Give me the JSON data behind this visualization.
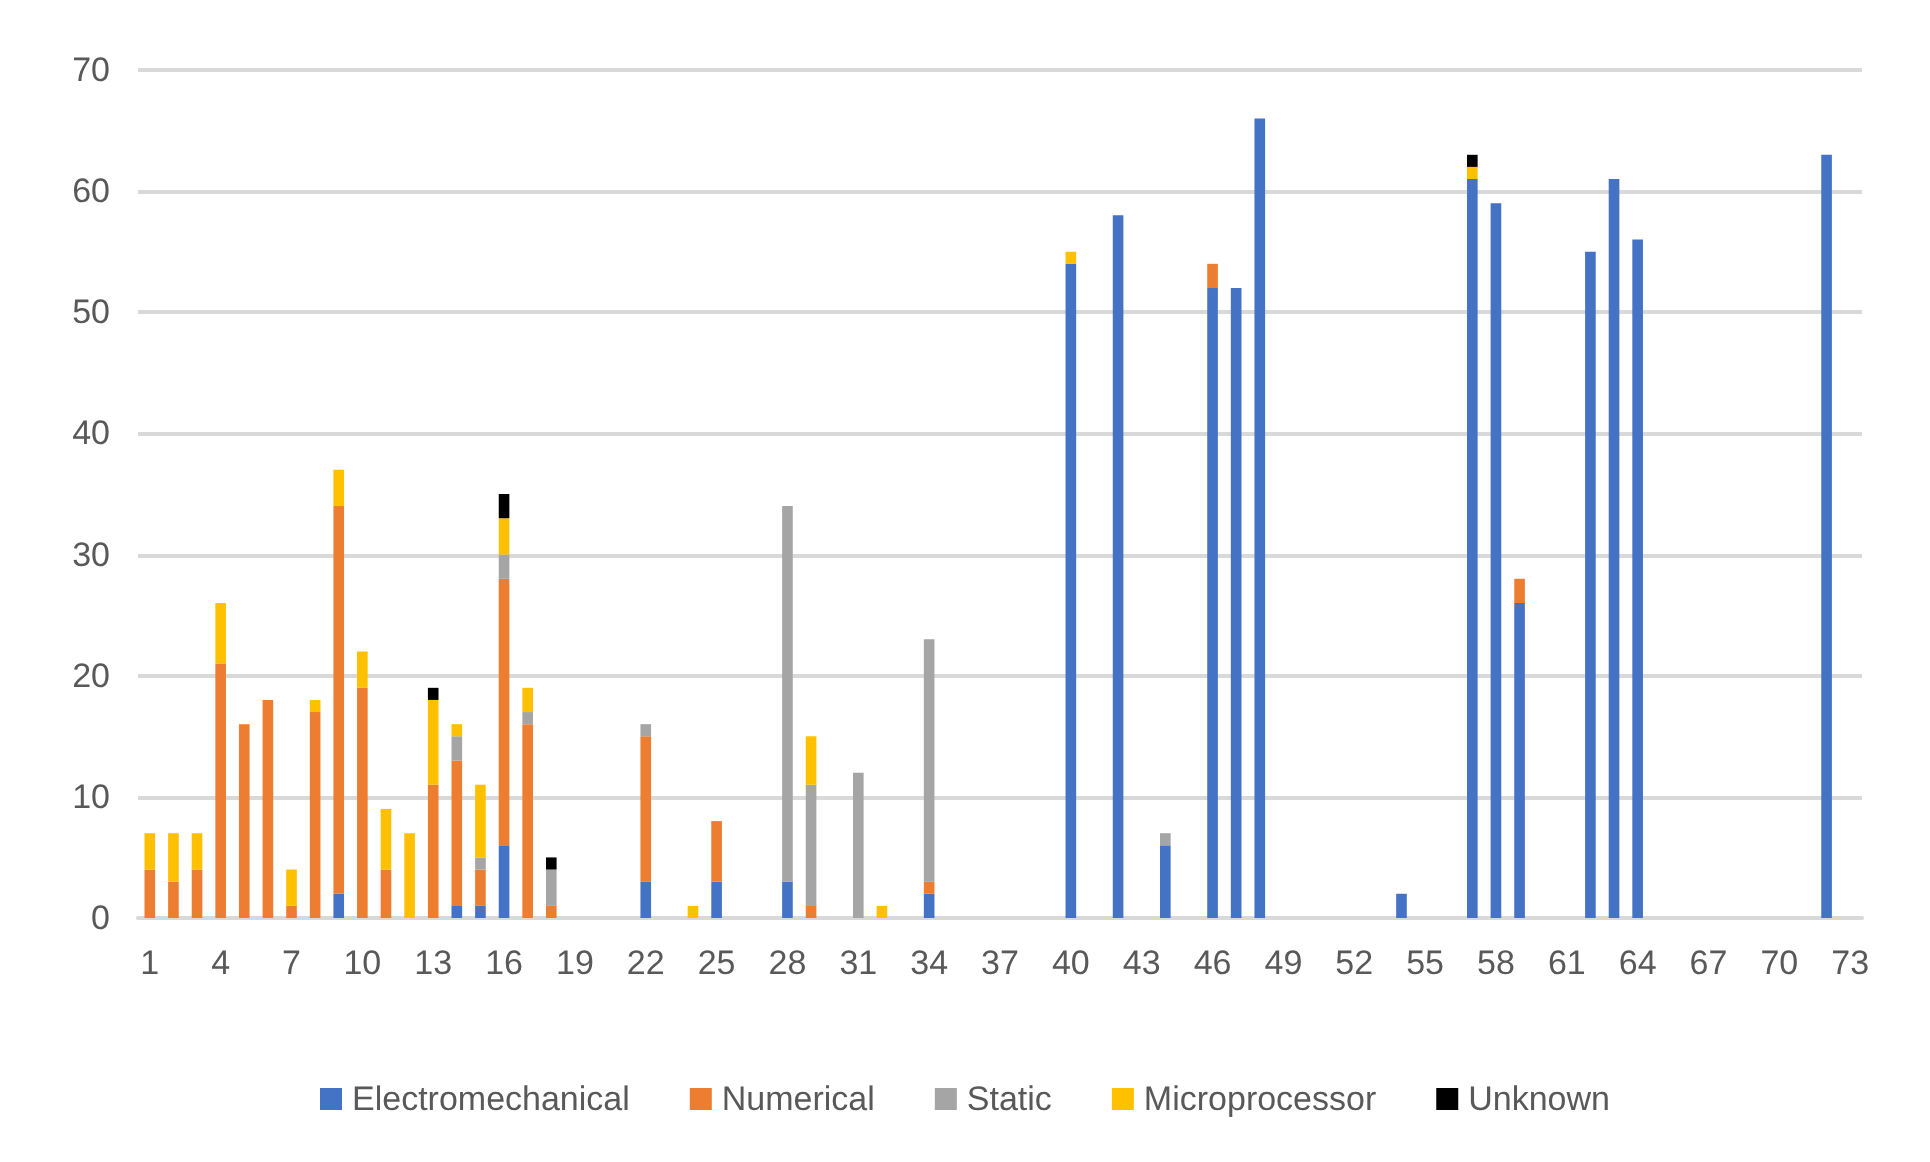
{
  "chart_data": {
    "type": "bar",
    "stacked": true,
    "grid": "y",
    "legend": "bottom",
    "ylim": [
      0,
      70
    ],
    "yticks": [
      0,
      10,
      20,
      30,
      40,
      50,
      60,
      70
    ],
    "categories": [
      "1",
      null,
      null,
      "4",
      null,
      null,
      "7",
      null,
      null,
      "10",
      null,
      null,
      "13",
      null,
      null,
      "16",
      null,
      null,
      "19",
      null,
      null,
      "22",
      null,
      null,
      "25",
      null,
      null,
      "28",
      null,
      null,
      "31",
      null,
      null,
      "34",
      null,
      null,
      "37",
      null,
      null,
      "40",
      null,
      null,
      "43",
      null,
      null,
      "46",
      null,
      null,
      "49",
      null,
      null,
      "52",
      null,
      null,
      "55",
      null,
      null,
      "58",
      null,
      null,
      "61",
      null,
      null,
      "64",
      null,
      null,
      "67",
      null,
      null,
      "70",
      null,
      null,
      "73"
    ],
    "series": [
      {
        "name": "Electromechanical",
        "color": "#4472c4",
        "values": [
          null,
          null,
          null,
          null,
          null,
          null,
          null,
          null,
          2,
          null,
          null,
          null,
          null,
          1,
          1,
          6,
          null,
          null,
          null,
          null,
          null,
          3,
          null,
          null,
          3,
          null,
          null,
          3,
          null,
          null,
          null,
          null,
          null,
          2,
          null,
          null,
          null,
          null,
          null,
          54,
          null,
          58,
          null,
          6,
          null,
          52,
          52,
          66,
          null,
          null,
          null,
          null,
          null,
          2,
          null,
          null,
          61,
          59,
          26,
          null,
          null,
          55,
          61,
          56,
          null,
          null,
          null,
          null,
          null,
          null,
          null,
          63,
          null
        ]
      },
      {
        "name": "Numerical",
        "color": "#ed7d31",
        "values": [
          4,
          3,
          4,
          21,
          16,
          18,
          1,
          17,
          32,
          19,
          4,
          null,
          11,
          12,
          3,
          22,
          16,
          1,
          null,
          null,
          null,
          12,
          null,
          null,
          5,
          null,
          null,
          null,
          1,
          null,
          null,
          null,
          null,
          1,
          null,
          null,
          null,
          null,
          null,
          null,
          null,
          null,
          null,
          null,
          null,
          2,
          null,
          null,
          null,
          null,
          null,
          null,
          null,
          null,
          null,
          null,
          null,
          null,
          2,
          null,
          null,
          null,
          null,
          null,
          null,
          null,
          null,
          null,
          null,
          null,
          null,
          null,
          null
        ]
      },
      {
        "name": "Static",
        "color": "#a5a5a5",
        "values": [
          null,
          null,
          null,
          null,
          null,
          null,
          null,
          null,
          null,
          null,
          null,
          null,
          null,
          2,
          1,
          2,
          1,
          3,
          null,
          null,
          null,
          1,
          null,
          null,
          null,
          null,
          null,
          31,
          10,
          null,
          12,
          null,
          null,
          20,
          null,
          null,
          null,
          null,
          null,
          null,
          null,
          null,
          null,
          1,
          null,
          null,
          null,
          null,
          null,
          null,
          null,
          null,
          null,
          null,
          null,
          null,
          null,
          null,
          null,
          null,
          null,
          null,
          null,
          null,
          null,
          null,
          null,
          null,
          null,
          null,
          null,
          null,
          null
        ]
      },
      {
        "name": "Microprocessor",
        "color": "#ffc000",
        "values": [
          3,
          4,
          3,
          5,
          null,
          null,
          3,
          1,
          3,
          3,
          5,
          7,
          7,
          1,
          6,
          3,
          2,
          null,
          null,
          null,
          null,
          null,
          null,
          1,
          null,
          null,
          null,
          null,
          4,
          null,
          null,
          1,
          null,
          null,
          null,
          null,
          null,
          null,
          null,
          1,
          null,
          null,
          null,
          null,
          null,
          null,
          null,
          null,
          null,
          null,
          null,
          null,
          null,
          null,
          null,
          null,
          1,
          null,
          null,
          null,
          null,
          null,
          null,
          null,
          null,
          null,
          null,
          null,
          null,
          null,
          null,
          null,
          null
        ]
      },
      {
        "name": "Unknown",
        "color": "#000000",
        "values": [
          null,
          null,
          null,
          null,
          null,
          null,
          null,
          null,
          null,
          null,
          null,
          null,
          1,
          null,
          null,
          2,
          null,
          1,
          null,
          null,
          null,
          null,
          null,
          null,
          null,
          null,
          null,
          null,
          null,
          null,
          null,
          null,
          null,
          null,
          null,
          null,
          null,
          null,
          null,
          null,
          null,
          null,
          null,
          null,
          null,
          null,
          null,
          null,
          null,
          null,
          null,
          null,
          null,
          null,
          null,
          null,
          1,
          null,
          null,
          null,
          null,
          null,
          null,
          null,
          null,
          null,
          null,
          null,
          null,
          null,
          null,
          null,
          null
        ]
      }
    ]
  }
}
